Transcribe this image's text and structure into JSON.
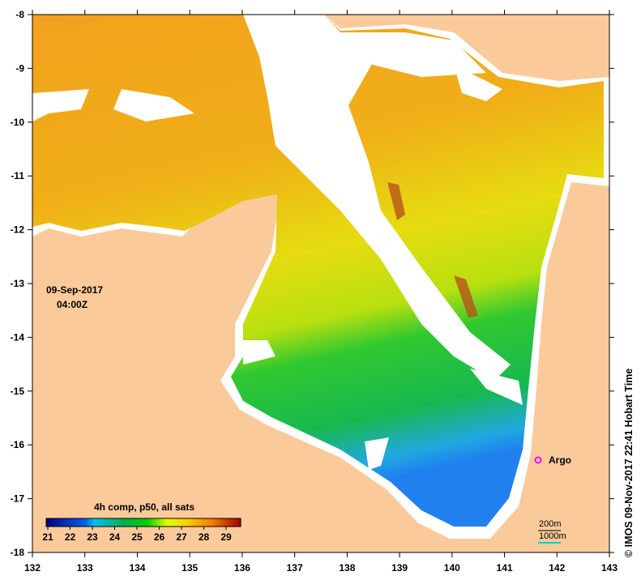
{
  "map": {
    "date": "09-Sep-2017",
    "time": "04:00Z",
    "credit": "© IMOS 09-Nov-2017 22:41 Hobart Time",
    "argo_label": "Argo",
    "scale_labels": [
      "200m",
      "1000m"
    ],
    "colors": {
      "land": "#fbca9b",
      "nodata": "#ffffff",
      "argo": "#ff00ff",
      "contour": "#00d0d0"
    },
    "x_ticks": [
      "132",
      "133",
      "134",
      "135",
      "136",
      "137",
      "138",
      "139",
      "140",
      "141",
      "142",
      "143"
    ],
    "y_ticks": [
      "-8",
      "-9",
      "-10",
      "-11",
      "-12",
      "-13",
      "-14",
      "-15",
      "-16",
      "-17",
      "-18"
    ]
  },
  "legend": {
    "title": "4h comp, p50, all sats",
    "ticks": [
      "21",
      "22",
      "23",
      "24",
      "25",
      "26",
      "27",
      "28",
      "29"
    ]
  }
}
